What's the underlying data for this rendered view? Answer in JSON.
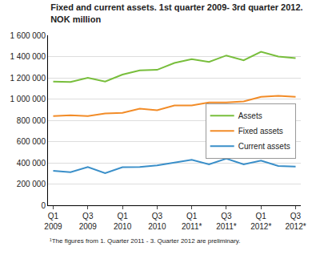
{
  "chart_data": {
    "type": "line",
    "title": "Fixed and current assets. 1st quarter 2009- 3rd quarter 2012.",
    "subtitle": "NOK million",
    "footnote": "¹The figures from 1. Quarter 2011 - 3. Quarter 2012 are preliminary.",
    "categories": [
      "Q1 2009",
      null,
      "Q3 2009",
      null,
      "Q1 2010",
      null,
      "Q3 2010",
      null,
      "Q1 2011*",
      null,
      "Q3 2011*",
      null,
      "Q1 2012*",
      null,
      "Q3 2012*"
    ],
    "series": [
      {
        "name": "Assets",
        "color": "#78be3c",
        "values": [
          1165000,
          1160000,
          1200000,
          1165000,
          1230000,
          1270000,
          1275000,
          1340000,
          1375000,
          1350000,
          1410000,
          1365000,
          1445000,
          1400000,
          1385000
        ]
      },
      {
        "name": "Fixed assets",
        "color": "#f28c28",
        "values": [
          840000,
          848000,
          840000,
          865000,
          870000,
          910000,
          895000,
          940000,
          940000,
          968000,
          968000,
          978000,
          1020000,
          1030000,
          1020000
        ]
      },
      {
        "name": "Current assets",
        "color": "#3a8fc9",
        "values": [
          325000,
          312000,
          360000,
          302000,
          358000,
          360000,
          375000,
          400000,
          428000,
          385000,
          440000,
          385000,
          420000,
          370000,
          365000
        ]
      }
    ],
    "ylim": [
      0,
      1600000
    ],
    "yticks": [
      0,
      {
        "value": 200000,
        "label": "200 000"
      },
      {
        "value": 400000,
        "label": "400 000"
      },
      {
        "value": 600000,
        "label": "600 000"
      },
      {
        "value": 800000,
        "label": "800 000"
      },
      {
        "value": 1000000,
        "label": "1 000 000"
      },
      {
        "value": 1200000,
        "label": "1 200 000"
      },
      {
        "value": 1400000,
        "label": "1 400 000"
      },
      {
        "value": 1600000,
        "label": "1 600 000"
      }
    ],
    "grid": true,
    "legend": "right"
  }
}
